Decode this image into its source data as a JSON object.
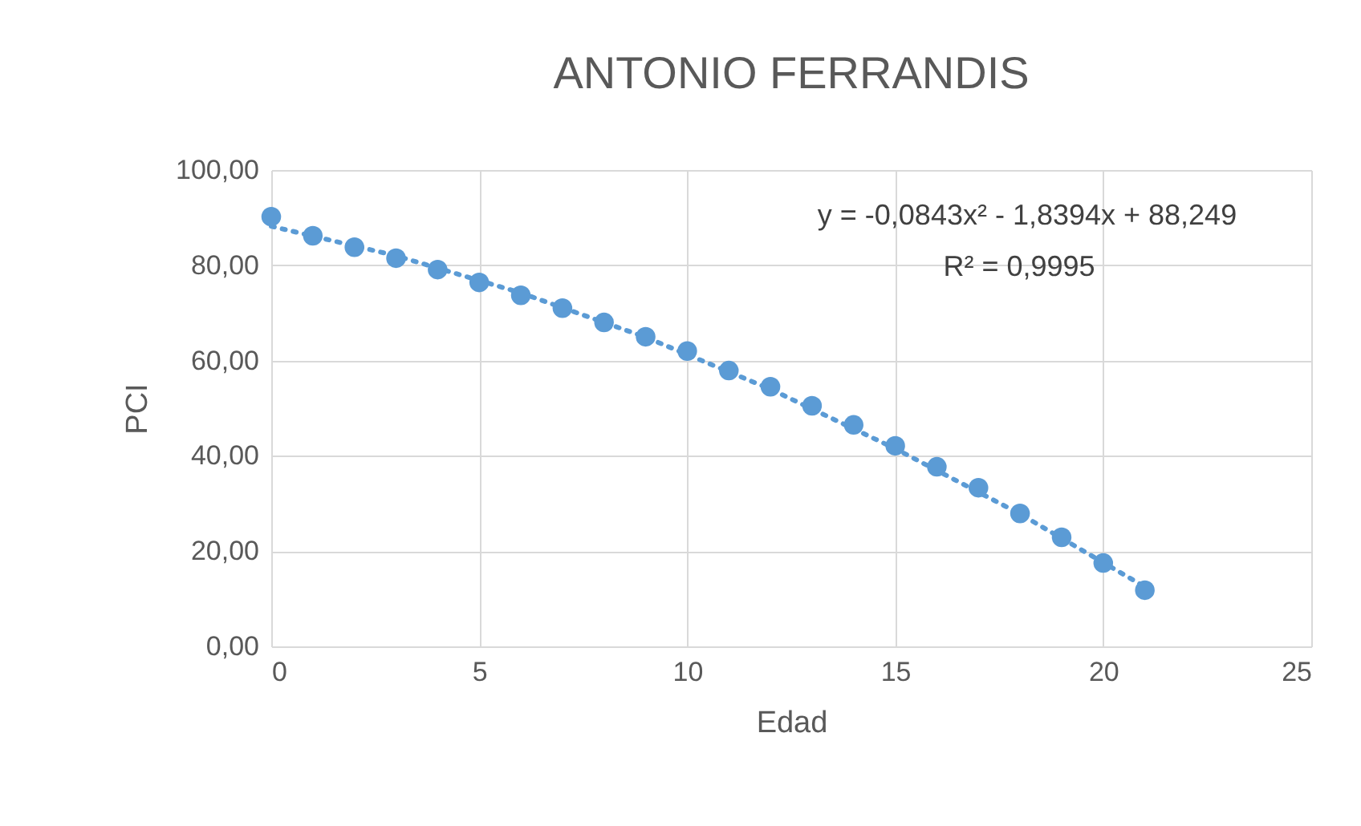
{
  "chart_data": {
    "type": "scatter",
    "title": "ANTONIO FERRANDIS",
    "xlabel": "Edad",
    "ylabel": "PCI",
    "x": [
      0,
      1,
      2,
      3,
      4,
      5,
      6,
      7,
      8,
      9,
      10,
      11,
      12,
      13,
      14,
      15,
      16,
      17,
      18,
      19,
      20,
      21
    ],
    "series": [
      {
        "color": "#5b9bd5",
        "marker": "circle",
        "values": [
          90.2,
          86.2,
          83.8,
          81.5,
          79.1,
          76.4,
          73.7,
          71.0,
          68.0,
          65.0,
          62.0,
          57.9,
          54.5,
          50.5,
          46.5,
          42.1,
          37.7,
          33.3,
          27.9,
          22.9,
          17.5,
          11.8
        ]
      },
      {
        "type": "line",
        "color": "#5b9bd5",
        "line_style": "dotted",
        "x": [
          0,
          3,
          6,
          9,
          12,
          15,
          18,
          21
        ],
        "values": [
          88.2,
          82.0,
          74.2,
          64.9,
          54.0,
          41.5,
          27.8,
          12.5
        ]
      }
    ],
    "xlim": [
      0,
      25
    ],
    "xticks": [
      0,
      5,
      10,
      15,
      20,
      25
    ],
    "ylim": [
      0,
      100
    ],
    "yticks": [
      {
        "value": 0,
        "label": "0,00"
      },
      {
        "value": 20,
        "label": "20,00"
      },
      {
        "value": 40,
        "label": "40,00"
      },
      {
        "value": 60,
        "label": "60,00"
      },
      {
        "value": 80,
        "label": "80,00"
      },
      {
        "value": 100,
        "label": "100,00"
      }
    ],
    "grid": true,
    "annotations": [
      "y = -0,0843x² - 1,8394x + 88,249",
      "R² = 0,9995"
    ]
  }
}
